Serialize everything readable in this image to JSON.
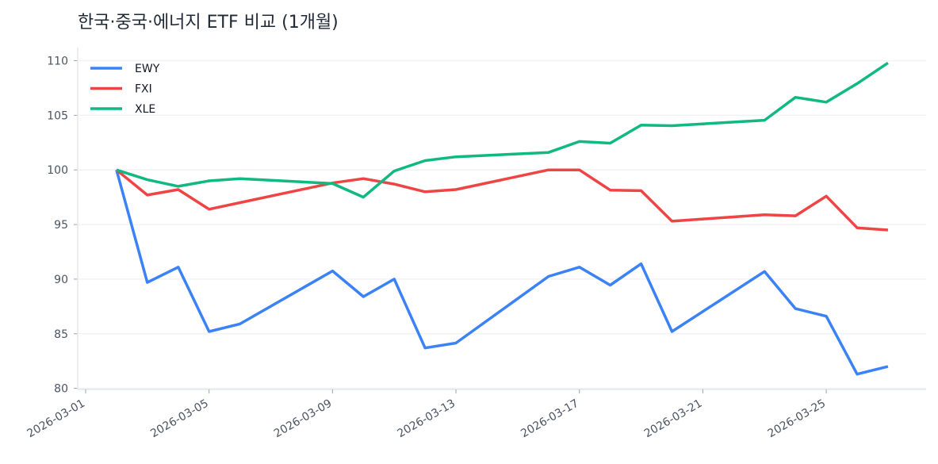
{
  "chart_data": {
    "type": "line",
    "title": "한국·중국·에너지 ETF 비교 (1개월)",
    "xlabel": "",
    "ylabel": "",
    "ylim": [
      79.9,
      111.2
    ],
    "grid": "horizontal",
    "legend": "top-left",
    "x_ticks": [
      "2026-03-01",
      "2026-03-05",
      "2026-03-09",
      "2026-03-13",
      "2026-03-17",
      "2026-03-21",
      "2026-03-25"
    ],
    "y_ticks": [
      80,
      85,
      90,
      95,
      100,
      105,
      110
    ],
    "x": [
      "2026-03-02",
      "2026-03-03",
      "2026-03-04",
      "2026-03-05",
      "2026-03-06",
      "2026-03-09",
      "2026-03-10",
      "2026-03-11",
      "2026-03-12",
      "2026-03-13",
      "2026-03-16",
      "2026-03-17",
      "2026-03-18",
      "2026-03-19",
      "2026-03-20",
      "2026-03-23",
      "2026-03-24",
      "2026-03-25",
      "2026-03-26",
      "2026-03-27"
    ],
    "series": [
      {
        "name": "EWY",
        "color": "#3b82f6",
        "values": [
          100,
          89.7,
          91.1,
          85.2,
          85.9,
          90.75,
          88.4,
          90.0,
          83.7,
          84.15,
          90.25,
          91.1,
          89.45,
          91.4,
          85.2,
          90.7,
          87.3,
          86.6,
          81.3,
          82.0
        ]
      },
      {
        "name": "FXI",
        "color": "#ef4444",
        "values": [
          100,
          97.7,
          98.2,
          96.4,
          97.0,
          98.8,
          99.2,
          98.7,
          98.0,
          98.2,
          100.0,
          100.0,
          98.15,
          98.1,
          95.3,
          95.9,
          95.8,
          97.6,
          94.7,
          94.5
        ]
      },
      {
        "name": "XLE",
        "color": "#10b981",
        "values": [
          100,
          99.1,
          98.5,
          99.0,
          99.2,
          98.75,
          97.5,
          99.9,
          100.85,
          101.2,
          101.6,
          102.6,
          102.45,
          104.1,
          104.05,
          104.55,
          106.65,
          106.2,
          107.9,
          109.8
        ]
      }
    ]
  }
}
